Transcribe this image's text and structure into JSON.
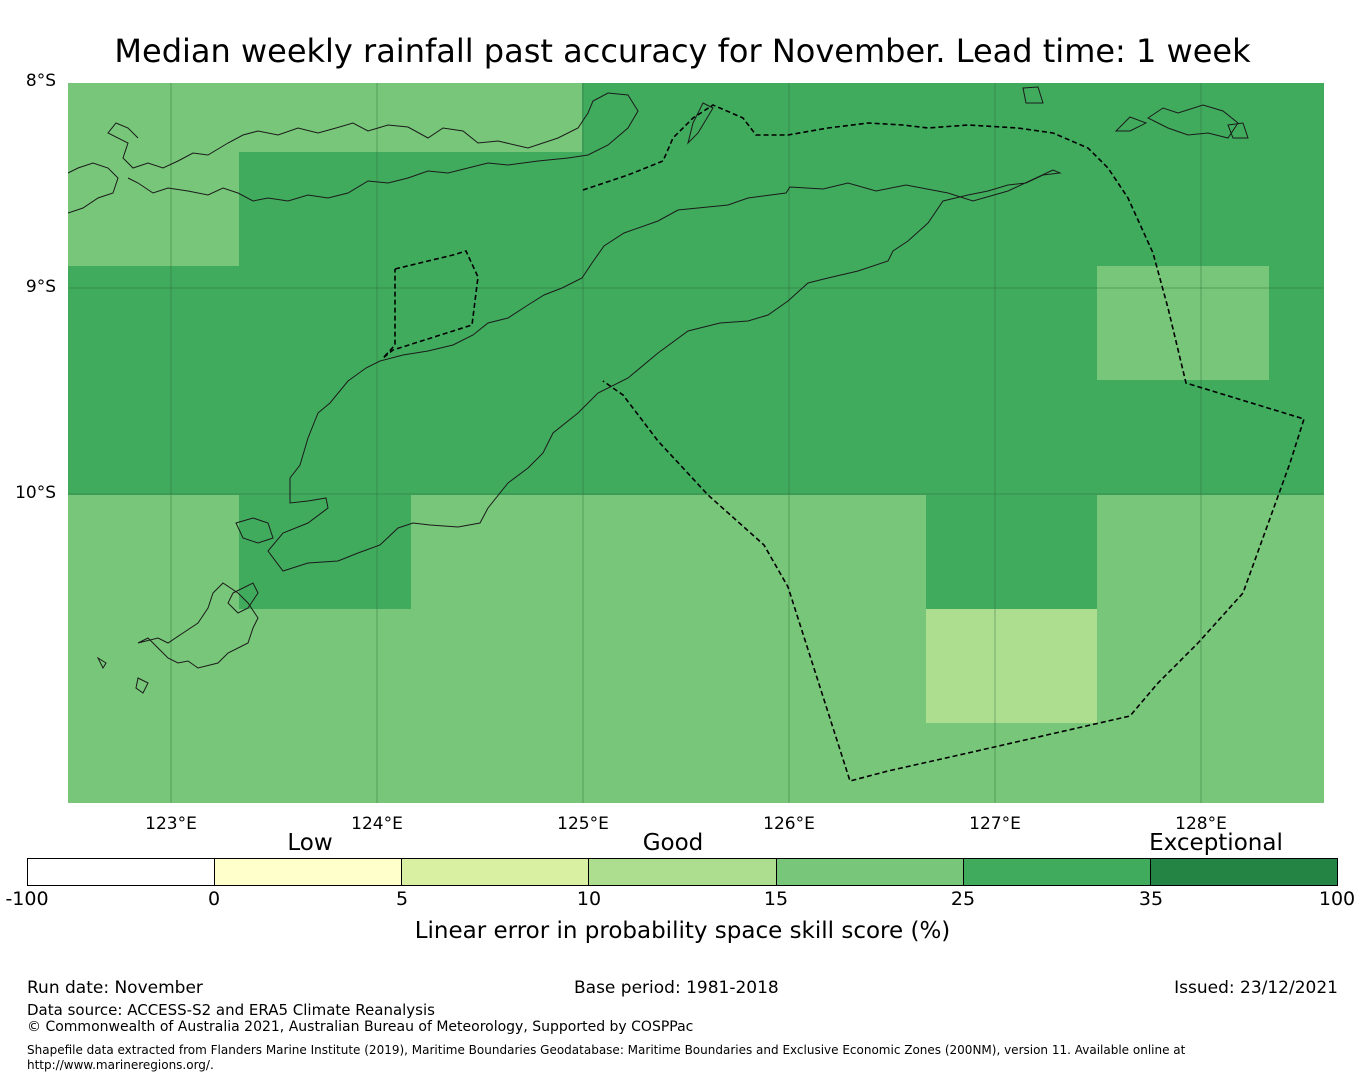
{
  "title": "Median weekly rainfall past accuracy for November. Lead time: 1 week",
  "map": {
    "lat_labels": [
      "8°S",
      "9°S",
      "10°S"
    ],
    "lon_labels": [
      "123°E",
      "124°E",
      "125°E",
      "126°E",
      "127°E",
      "128°E"
    ]
  },
  "legend": {
    "categories": [
      "Low",
      "Good",
      "Exceptional"
    ],
    "ticks": [
      "-100",
      "0",
      "5",
      "10",
      "15",
      "25",
      "35",
      "100"
    ],
    "colors": [
      "#ffffff",
      "#ffffcc",
      "#d9f0a3",
      "#addd8e",
      "#78c679",
      "#41ab5d",
      "#238443"
    ],
    "title": "Linear error in probability space skill score (%)"
  },
  "footer": {
    "run_date": "Run date: November",
    "base_period": "Base period: 1981-2018",
    "issued": "Issued: 23/12/2021",
    "data_source": "Data source: ACCESS-S2 and ERA5 Climate Reanalysis",
    "copyright": "© Commonwealth of Australia 2021, Australian Bureau of Meteorology, Supported by COSPPac",
    "shapefile": "Shapefile data extracted from Flanders Marine Institute (2019), Maritime Boundaries Geodatabase: Maritime Boundaries and Exclusive Economic Zones (200NM), version 11. Available online at http://www.marineregions.org/."
  }
}
